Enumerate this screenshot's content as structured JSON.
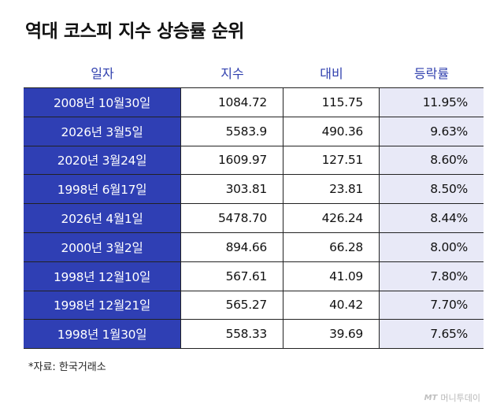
{
  "title": "역대 코스피 지수 상승률 순위",
  "chart_data": {
    "type": "table",
    "title": "역대 코스피 지수 상승률 순위",
    "columns": [
      "일자",
      "지수",
      "대비",
      "등락률"
    ],
    "rows": [
      [
        "2008년 10월30일",
        "1084.72",
        "115.75",
        "11.95%"
      ],
      [
        "2026년 3월5일",
        "5583.9",
        "490.36",
        "9.63%"
      ],
      [
        "2020년 3월24일",
        "1609.97",
        "127.51",
        "8.60%"
      ],
      [
        "1998년 6월17일",
        "303.81",
        "23.81",
        "8.50%"
      ],
      [
        "2026년 4월1일",
        "5478.70",
        "426.24",
        "8.44%"
      ],
      [
        "2000년 3월2일",
        "894.66",
        "66.28",
        "8.00%"
      ],
      [
        "1998년 12월10일",
        "567.61",
        "41.09",
        "7.80%"
      ],
      [
        "1998년 12월21일",
        "565.27",
        "40.42",
        "7.70%"
      ],
      [
        "1998년 1월30일",
        "558.33",
        "39.69",
        "7.65%"
      ]
    ]
  },
  "source": "*자료: 한국거래소",
  "watermark": {
    "logo": "MT",
    "text": "머니투데이"
  },
  "colors": {
    "date_column_bg": "#2f3fb4",
    "rate_column_bg": "#e8e9f7",
    "header_text": "#2f3fae"
  }
}
